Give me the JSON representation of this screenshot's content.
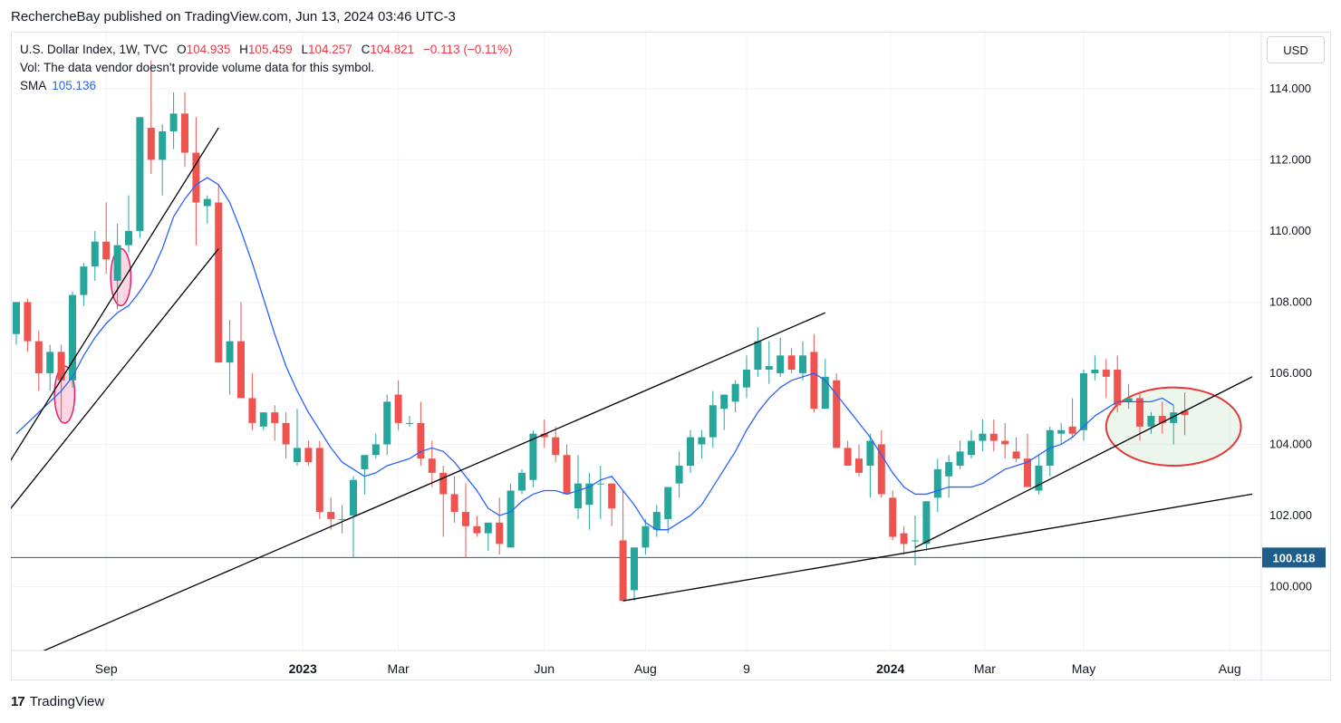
{
  "header": {
    "published_line": "RechercheBay published on TradingView.com, Jun 13, 2024 03:46 UTC-3"
  },
  "legend": {
    "symbol_line": "U.S. Dollar Index, 1W, TVC",
    "open_label": "O",
    "open_value": "104.935",
    "high_label": "H",
    "high_value": "105.459",
    "low_label": "L",
    "low_value": "104.257",
    "close_label": "C",
    "close_value": "104.821",
    "change_value": "−0.113 (−0.11%)",
    "vol_line": "Vol: The data vendor doesn't provide volume data for this symbol.",
    "sma_label": "SMA",
    "sma_value": "105.136"
  },
  "toolbar": {
    "currency": "USD"
  },
  "footer": {
    "brand": "TradingView",
    "brand_mark": "17"
  },
  "colors": {
    "up": "#26a69a",
    "down": "#ef5350",
    "sma": "#2962ff",
    "price_line": "#1e5c8a",
    "trend": "#000000",
    "ellipse_pink": "#e91e63",
    "ellipse_red": "#e53935",
    "ellipse_fill": "#e8f5e9"
  },
  "chart_data": {
    "type": "candlestick",
    "title": "U.S. Dollar Index, 1W, TVC",
    "ylim": [
      98,
      115.5
    ],
    "y_ticks": [
      "100.000",
      "102.000",
      "104.000",
      "106.000",
      "108.000",
      "110.000",
      "112.000",
      "114.000"
    ],
    "x_labels": [
      "Sep",
      "2023",
      "Mar",
      "Jun",
      "Aug",
      "9",
      "2024",
      "Mar",
      "May",
      "Aug"
    ],
    "bold_x_labels": [
      "2023",
      "2024"
    ],
    "price_line": {
      "value": 100.818,
      "label": "100.818"
    },
    "candles": [
      [
        107.1,
        108.0,
        106.8,
        108.0
      ],
      [
        108.0,
        108.1,
        106.6,
        106.9
      ],
      [
        106.9,
        107.2,
        105.5,
        106.0
      ],
      [
        106.0,
        106.8,
        105.5,
        106.6
      ],
      [
        106.6,
        106.8,
        104.7,
        105.8
      ],
      [
        105.8,
        108.3,
        105.6,
        108.2
      ],
      [
        108.2,
        109.1,
        107.9,
        109.0
      ],
      [
        109.0,
        110.0,
        108.6,
        109.7
      ],
      [
        109.7,
        110.8,
        108.8,
        109.2
      ],
      [
        108.6,
        110.2,
        107.8,
        109.6
      ],
      [
        109.6,
        111.0,
        109.4,
        110.0
      ],
      [
        110.0,
        113.2,
        109.8,
        113.2
      ],
      [
        112.9,
        114.8,
        111.6,
        112.0
      ],
      [
        112.0,
        113.0,
        111.0,
        112.8
      ],
      [
        112.8,
        113.9,
        112.3,
        113.3
      ],
      [
        113.3,
        113.9,
        111.8,
        112.2
      ],
      [
        112.2,
        113.2,
        109.6,
        110.8
      ],
      [
        110.7,
        111.0,
        110.2,
        110.9
      ],
      [
        110.8,
        111.3,
        106.3,
        106.3
      ],
      [
        106.3,
        107.5,
        105.4,
        106.9
      ],
      [
        106.9,
        108.0,
        105.3,
        105.3
      ],
      [
        105.3,
        106.0,
        104.4,
        104.6
      ],
      [
        104.5,
        104.9,
        104.4,
        104.9
      ],
      [
        104.9,
        105.1,
        104.1,
        104.6
      ],
      [
        104.6,
        104.9,
        103.6,
        104.0
      ],
      [
        103.5,
        105.0,
        103.4,
        103.9
      ],
      [
        103.9,
        104.1,
        103.4,
        103.5
      ],
      [
        103.9,
        104.1,
        101.9,
        102.1
      ],
      [
        102.1,
        102.5,
        101.6,
        101.9
      ],
      [
        101.9,
        102.3,
        101.5,
        101.9
      ],
      [
        102.0,
        103.1,
        100.8,
        103.0
      ],
      [
        103.3,
        103.6,
        102.6,
        103.7
      ],
      [
        103.7,
        104.3,
        103.6,
        104.0
      ],
      [
        104.0,
        105.4,
        103.7,
        105.2
      ],
      [
        105.4,
        105.8,
        104.4,
        104.6
      ],
      [
        104.6,
        104.8,
        104.5,
        104.6
      ],
      [
        104.6,
        105.2,
        103.4,
        103.6
      ],
      [
        103.6,
        104.1,
        102.8,
        103.2
      ],
      [
        103.2,
        103.4,
        101.4,
        102.6
      ],
      [
        102.6,
        103.1,
        101.8,
        102.1
      ],
      [
        102.1,
        102.9,
        100.8,
        101.7
      ],
      [
        101.7,
        102.0,
        101.4,
        101.5
      ],
      [
        101.5,
        101.7,
        101.0,
        101.8
      ],
      [
        101.8,
        102.5,
        100.9,
        101.2
      ],
      [
        101.1,
        102.9,
        101.1,
        102.7
      ],
      [
        102.7,
        103.3,
        102.6,
        103.2
      ],
      [
        103.0,
        104.4,
        102.8,
        104.3
      ],
      [
        104.3,
        104.7,
        103.9,
        104.2
      ],
      [
        104.2,
        104.5,
        103.5,
        103.7
      ],
      [
        103.7,
        104.0,
        102.6,
        102.6
      ],
      [
        102.2,
        103.7,
        101.9,
        102.9
      ],
      [
        102.3,
        103.2,
        101.6,
        102.9
      ],
      [
        102.9,
        103.4,
        101.9,
        102.9
      ],
      [
        102.9,
        102.9,
        101.7,
        102.2
      ],
      [
        101.3,
        102.7,
        99.6,
        99.6
      ],
      [
        99.9,
        101.1,
        99.6,
        101.1
      ],
      [
        101.1,
        101.9,
        100.9,
        101.7
      ],
      [
        101.6,
        102.3,
        101.4,
        102.1
      ],
      [
        101.9,
        102.8,
        101.5,
        102.8
      ],
      [
        102.9,
        103.8,
        102.5,
        103.4
      ],
      [
        103.4,
        104.4,
        103.2,
        104.2
      ],
      [
        104.0,
        104.4,
        103.6,
        104.2
      ],
      [
        104.2,
        105.5,
        103.9,
        105.1
      ],
      [
        105.0,
        105.4,
        104.4,
        105.4
      ],
      [
        105.2,
        105.8,
        104.9,
        105.7
      ],
      [
        105.6,
        106.5,
        105.3,
        106.1
      ],
      [
        106.1,
        107.3,
        105.9,
        106.9
      ],
      [
        106.1,
        106.9,
        105.7,
        106.2
      ],
      [
        106.0,
        107.0,
        105.9,
        106.5
      ],
      [
        106.5,
        106.7,
        106.0,
        106.1
      ],
      [
        106.0,
        106.9,
        105.8,
        106.5
      ],
      [
        106.6,
        107.1,
        104.9,
        105.0
      ],
      [
        105.0,
        106.4,
        105.0,
        105.9
      ],
      [
        105.8,
        106.0,
        103.9,
        103.9
      ],
      [
        103.9,
        104.1,
        103.4,
        103.4
      ],
      [
        103.6,
        104.0,
        103.1,
        103.2
      ],
      [
        103.4,
        104.3,
        102.5,
        104.1
      ],
      [
        104.0,
        104.4,
        102.5,
        102.6
      ],
      [
        102.5,
        102.7,
        101.3,
        101.4
      ],
      [
        101.5,
        101.7,
        100.9,
        101.2
      ],
      [
        101.3,
        102.0,
        100.6,
        101.3
      ],
      [
        101.2,
        102.3,
        101.0,
        102.4
      ],
      [
        102.5,
        103.6,
        102.1,
        103.3
      ],
      [
        103.1,
        103.7,
        102.5,
        103.5
      ],
      [
        103.4,
        104.1,
        103.3,
        103.8
      ],
      [
        103.7,
        104.4,
        103.6,
        104.1
      ],
      [
        104.1,
        104.7,
        103.8,
        104.3
      ],
      [
        104.3,
        104.7,
        103.8,
        104.1
      ],
      [
        104.1,
        104.6,
        103.6,
        104.0
      ],
      [
        103.8,
        104.2,
        103.5,
        103.6
      ],
      [
        103.6,
        104.3,
        102.9,
        102.8
      ],
      [
        102.7,
        103.7,
        102.6,
        103.4
      ],
      [
        103.4,
        104.5,
        103.1,
        104.4
      ],
      [
        104.3,
        104.6,
        104.0,
        104.4
      ],
      [
        104.5,
        105.3,
        104.2,
        104.3
      ],
      [
        104.4,
        106.1,
        104.1,
        106.0
      ],
      [
        106.0,
        106.5,
        105.8,
        106.1
      ],
      [
        106.1,
        106.4,
        105.3,
        105.9
      ],
      [
        106.1,
        106.5,
        104.9,
        105.1
      ],
      [
        105.2,
        105.7,
        105.0,
        105.3
      ],
      [
        105.3,
        105.5,
        104.1,
        104.5
      ],
      [
        104.5,
        104.9,
        104.3,
        104.8
      ],
      [
        104.8,
        105.2,
        104.3,
        104.6
      ],
      [
        104.6,
        105.1,
        104.0,
        104.9
      ],
      [
        104.94,
        105.46,
        104.26,
        104.82
      ]
    ],
    "sma_series": {
      "name": "SMA",
      "values": [
        104.3,
        104.6,
        104.9,
        105.2,
        105.5,
        105.9,
        106.5,
        107.0,
        107.4,
        107.7,
        107.9,
        108.3,
        108.8,
        109.5,
        110.4,
        110.9,
        111.3,
        111.5,
        111.3,
        110.8,
        110.0,
        109.1,
        108.1,
        107.1,
        106.2,
        105.5,
        104.9,
        104.4,
        103.9,
        103.5,
        103.3,
        103.1,
        103.2,
        103.4,
        103.5,
        103.6,
        103.8,
        103.9,
        103.8,
        103.5,
        103.1,
        102.7,
        102.2,
        102.0,
        102.1,
        102.4,
        102.6,
        102.7,
        102.7,
        102.6,
        102.7,
        102.8,
        103.0,
        103.1,
        102.7,
        102.3,
        101.8,
        101.6,
        101.6,
        101.8,
        102.0,
        102.3,
        102.8,
        103.3,
        103.8,
        104.4,
        104.9,
        105.3,
        105.6,
        105.8,
        105.9,
        106.0,
        105.8,
        105.4,
        105.0,
        104.6,
        104.2,
        103.7,
        103.2,
        102.8,
        102.6,
        102.6,
        102.7,
        102.8,
        102.8,
        102.8,
        102.9,
        103.1,
        103.3,
        103.4,
        103.5,
        103.7,
        103.9,
        104.0,
        104.2,
        104.5,
        104.8,
        105.0,
        105.2,
        105.2,
        105.2,
        105.2,
        105.3,
        105.1
      ]
    },
    "trendlines": [
      {
        "p1": [
          -1,
          103.3
        ],
        "p2": [
          18,
          112.9
        ]
      },
      {
        "p1": [
          -1,
          102.0
        ],
        "p2": [
          18,
          109.5
        ]
      },
      {
        "p1": [
          1,
          98.0
        ],
        "p2": [
          72,
          107.7
        ]
      },
      {
        "p1": [
          54,
          99.6
        ],
        "p2": [
          110,
          102.6
        ]
      },
      {
        "p1": [
          80,
          101.1
        ],
        "p2": [
          110,
          105.9
        ]
      }
    ],
    "highlight_ellipses": [
      {
        "center": [
          4.3,
          105.4
        ],
        "radii": [
          0.9,
          0.8
        ],
        "style": "pink"
      },
      {
        "center": [
          9.3,
          108.7
        ],
        "radii": [
          0.9,
          0.8
        ],
        "style": "pink"
      },
      {
        "center": [
          103,
          104.5
        ],
        "radii": [
          6.0,
          1.1
        ],
        "style": "green"
      }
    ]
  }
}
